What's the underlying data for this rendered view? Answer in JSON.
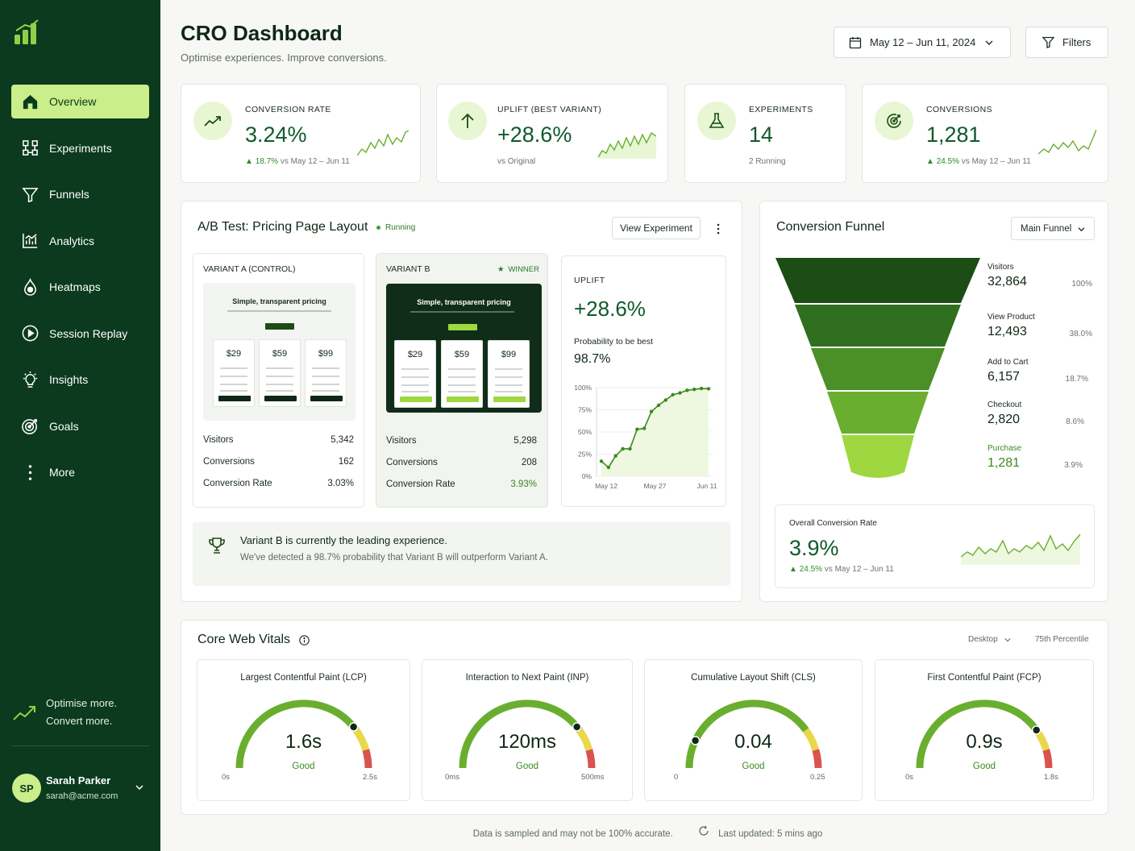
{
  "sidebar": {
    "items": [
      {
        "label": "Overview",
        "icon": "home-icon"
      },
      {
        "label": "Experiments",
        "icon": "experiments-icon"
      },
      {
        "label": "Funnels",
        "icon": "funnel-icon"
      },
      {
        "label": "Analytics",
        "icon": "analytics-icon"
      },
      {
        "label": "Heatmaps",
        "icon": "heatmap-icon"
      },
      {
        "label": "Session Replay",
        "icon": "play-icon"
      },
      {
        "label": "Insights",
        "icon": "lightbulb-icon"
      },
      {
        "label": "Goals",
        "icon": "target-icon"
      },
      {
        "label": "More",
        "icon": "more-vertical-icon"
      }
    ],
    "promo_line1": "Optimise more.",
    "promo_line2": "Convert more.",
    "user": {
      "initials": "SP",
      "name": "Sarah Parker",
      "email": "sarah@acme.com"
    }
  },
  "header": {
    "title": "CRO Dashboard",
    "subtitle": "Optimise experiences. Improve conversions.",
    "date_range": "May 12 – Jun 11, 2024",
    "filters_label": "Filters"
  },
  "kpis": [
    {
      "label": "CONVERSION RATE",
      "value": "3.24%",
      "change": "18.7%",
      "note": "vs May 12 – Jun 11"
    },
    {
      "label": "UPLIFT (BEST VARIANT)",
      "value": "+28.6%",
      "note": "vs Original"
    },
    {
      "label": "EXPERIMENTS",
      "value": "14",
      "note": "2 Running"
    },
    {
      "label": "CONVERSIONS",
      "value": "1,281",
      "change": "24.5%",
      "note": "vs May 12 – Jun 11"
    }
  ],
  "ab_test": {
    "title": "A/B Test: Pricing Page Layout",
    "status": "Running",
    "view_label": "View Experiment",
    "variant_a": {
      "name": "VARIANT A (CONTROL)",
      "mock_heading": "Simple, transparent pricing",
      "prices": [
        "$29",
        "$59",
        "$99"
      ],
      "rows": [
        {
          "label": "Visitors",
          "value": "5,342"
        },
        {
          "label": "Conversions",
          "value": "162"
        },
        {
          "label": "Conversion Rate",
          "value": "3.03%"
        }
      ]
    },
    "variant_b": {
      "name": "VARIANT B",
      "badge": "WINNER",
      "mock_heading": "Simple, transparent pricing",
      "prices": [
        "$29",
        "$59",
        "$99"
      ],
      "rows": [
        {
          "label": "Visitors",
          "value": "5,298"
        },
        {
          "label": "Conversions",
          "value": "208"
        },
        {
          "label": "Conversion Rate",
          "value": "3.93%"
        }
      ]
    },
    "uplift": {
      "label": "UPLIFT",
      "value": "+28.6%",
      "prob_label": "Probability to be best",
      "prob_value": "98.7%"
    },
    "banner_title": "Variant B is currently the leading experience.",
    "banner_desc": "We've detected a 98.7% probability that Variant B will outperform Variant A."
  },
  "chart_data": {
    "type": "area",
    "y_ticks": [
      "100%",
      "75%",
      "50%",
      "25%",
      "0%"
    ],
    "x_ticks": [
      "May 12",
      "May 27",
      "Jun 11"
    ],
    "ylim": [
      0,
      100
    ],
    "x": [
      0,
      1,
      2,
      3,
      4,
      5,
      6,
      7,
      8,
      9,
      10,
      11,
      12,
      13,
      14,
      15
    ],
    "values": [
      17,
      10,
      23,
      31,
      31,
      53,
      54,
      73,
      80,
      86,
      92,
      94,
      97,
      98,
      99,
      98.7
    ]
  },
  "funnel": {
    "title": "Conversion Funnel",
    "selector": "Main Funnel",
    "stages": [
      {
        "label": "Visitors",
        "value": "32,864",
        "pct": "100%",
        "color": "#1b4d15"
      },
      {
        "label": "View Product",
        "value": "12,493",
        "pct": "38.0%",
        "color": "#2f6f1f"
      },
      {
        "label": "Add to Cart",
        "value": "6,157",
        "pct": "18.7%",
        "color": "#4a8f27"
      },
      {
        "label": "Checkout",
        "value": "2,820",
        "pct": "8.6%",
        "color": "#6aae30"
      },
      {
        "label": "Purchase",
        "value": "1,281",
        "pct": "3.9%",
        "color": "#9ed73f"
      }
    ],
    "overall_label": "Overall Conversion Rate",
    "overall_value": "3.9%",
    "overall_change": "24.5%",
    "overall_note": "vs May 12 – Jun 11"
  },
  "cwv": {
    "title": "Core Web Vitals",
    "device": "Desktop",
    "percentile": "75th Percentile",
    "gauges": [
      {
        "title": "Largest Contentful Paint (LCP)",
        "value": "1.6s",
        "status": "Good",
        "min": "0s",
        "max": "2.5s",
        "level": 0.78
      },
      {
        "title": "Interaction to Next Paint (INP)",
        "value": "120ms",
        "status": "Good",
        "min": "0ms",
        "max": "500ms",
        "level": 0.78
      },
      {
        "title": "Cumulative Layout Shift (CLS)",
        "value": "0.04",
        "status": "Good",
        "min": "0",
        "max": "0.25",
        "level": 0.14
      },
      {
        "title": "First Contentful Paint (FCP)",
        "value": "0.9s",
        "status": "Good",
        "min": "0s",
        "max": "1.8s",
        "level": 0.8
      }
    ]
  },
  "footer": {
    "note": "Data is sampled and may not be 100% accurate.",
    "updated": "Last updated: 5 mins ago"
  }
}
